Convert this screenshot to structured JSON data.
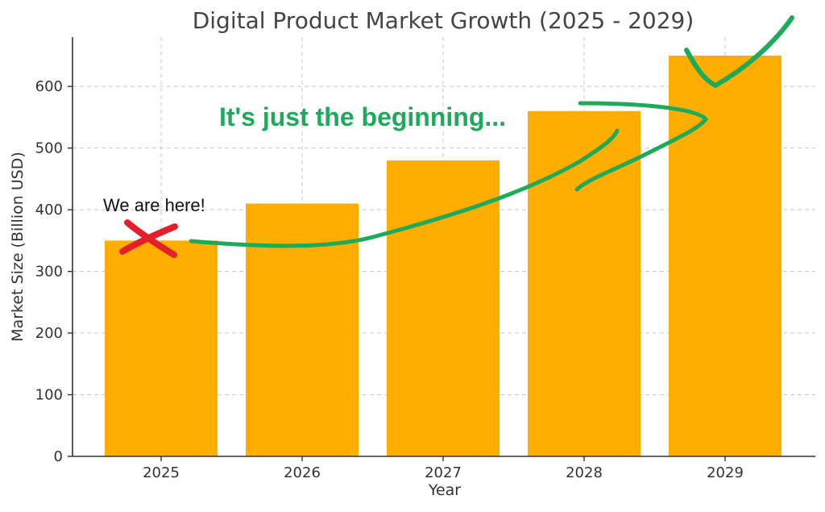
{
  "chart_data": {
    "type": "bar",
    "title": "Digital Product Market Growth (2025 - 2029)",
    "xlabel": "Year",
    "ylabel": "Market Size (Billion USD)",
    "categories": [
      "2025",
      "2026",
      "2027",
      "2028",
      "2029"
    ],
    "values": [
      350,
      410,
      480,
      560,
      650
    ],
    "ylim": [
      0,
      680
    ],
    "yticks": [
      0,
      100,
      200,
      300,
      400,
      500,
      600
    ],
    "grid": true,
    "bar_color": "#FFAE00",
    "annotations": {
      "here": {
        "text": "We are here!",
        "color": "#111111",
        "category": "2025"
      },
      "beginning": {
        "text": "It's just the beginning...",
        "color": "#1DAA5A"
      },
      "x_mark_color": "#E41E2A",
      "trend_color": "#1DAA5A"
    }
  }
}
